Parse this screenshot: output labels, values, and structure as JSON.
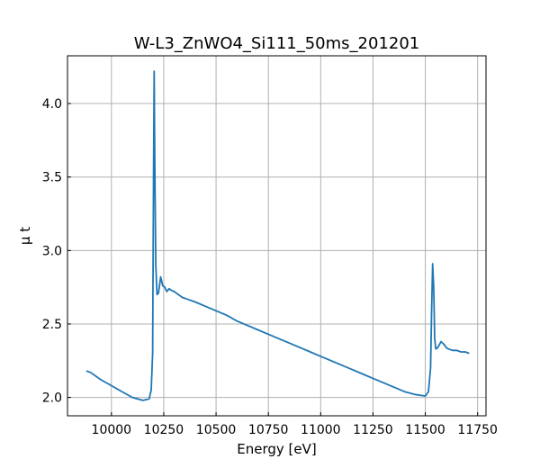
{
  "chart_data": {
    "type": "line",
    "title": "W-L3_ZnWO4_Si111_50ms_201201",
    "xlabel": "Energy [eV]",
    "ylabel": "μ t",
    "xlim": [
      9790,
      11790
    ],
    "ylim": [
      1.875,
      4.325
    ],
    "x_ticks": [
      10000,
      10250,
      10500,
      10750,
      11000,
      11250,
      11500,
      11750
    ],
    "y_ticks": [
      2.0,
      2.5,
      3.0,
      3.5,
      4.0
    ],
    "x_tick_labels": [
      "10000",
      "10250",
      "10500",
      "10750",
      "11000",
      "11250",
      "11500",
      "11750"
    ],
    "y_tick_labels": [
      "2.0",
      "2.5",
      "3.0",
      "3.5",
      "4.0"
    ],
    "grid": true,
    "tick_direction": "in",
    "colors": {
      "series": "#1f77b4",
      "grid": "#b0b0b0",
      "axes": "#000000"
    },
    "series": [
      {
        "x": [
          9880,
          9900,
          9950,
          10000,
          10050,
          10100,
          10150,
          10180,
          10190,
          10197,
          10201,
          10204,
          10207,
          10212,
          10218,
          10225,
          10235,
          10245,
          10255,
          10265,
          10275,
          10285,
          10300,
          10320,
          10340,
          10360,
          10400,
          10450,
          10500,
          10550,
          10600,
          10650,
          10700,
          10750,
          10800,
          10850,
          10900,
          10950,
          11000,
          11050,
          11100,
          11150,
          11200,
          11250,
          11300,
          11350,
          11400,
          11450,
          11500,
          11515,
          11525,
          11530,
          11535,
          11540,
          11545,
          11550,
          11560,
          11575,
          11590,
          11600,
          11610,
          11630,
          11650,
          11670,
          11690,
          11710
        ],
        "y": [
          2.18,
          2.17,
          2.12,
          2.08,
          2.04,
          2.0,
          1.98,
          1.99,
          2.05,
          2.3,
          3.5,
          4.22,
          3.6,
          2.9,
          2.7,
          2.71,
          2.82,
          2.76,
          2.75,
          2.72,
          2.74,
          2.73,
          2.72,
          2.7,
          2.68,
          2.67,
          2.65,
          2.62,
          2.59,
          2.56,
          2.52,
          2.49,
          2.46,
          2.43,
          2.4,
          2.37,
          2.34,
          2.31,
          2.28,
          2.25,
          2.22,
          2.19,
          2.16,
          2.13,
          2.1,
          2.07,
          2.04,
          2.02,
          2.01,
          2.04,
          2.2,
          2.6,
          2.91,
          2.75,
          2.4,
          2.33,
          2.34,
          2.38,
          2.36,
          2.34,
          2.33,
          2.32,
          2.32,
          2.31,
          2.31,
          2.3
        ]
      }
    ]
  }
}
